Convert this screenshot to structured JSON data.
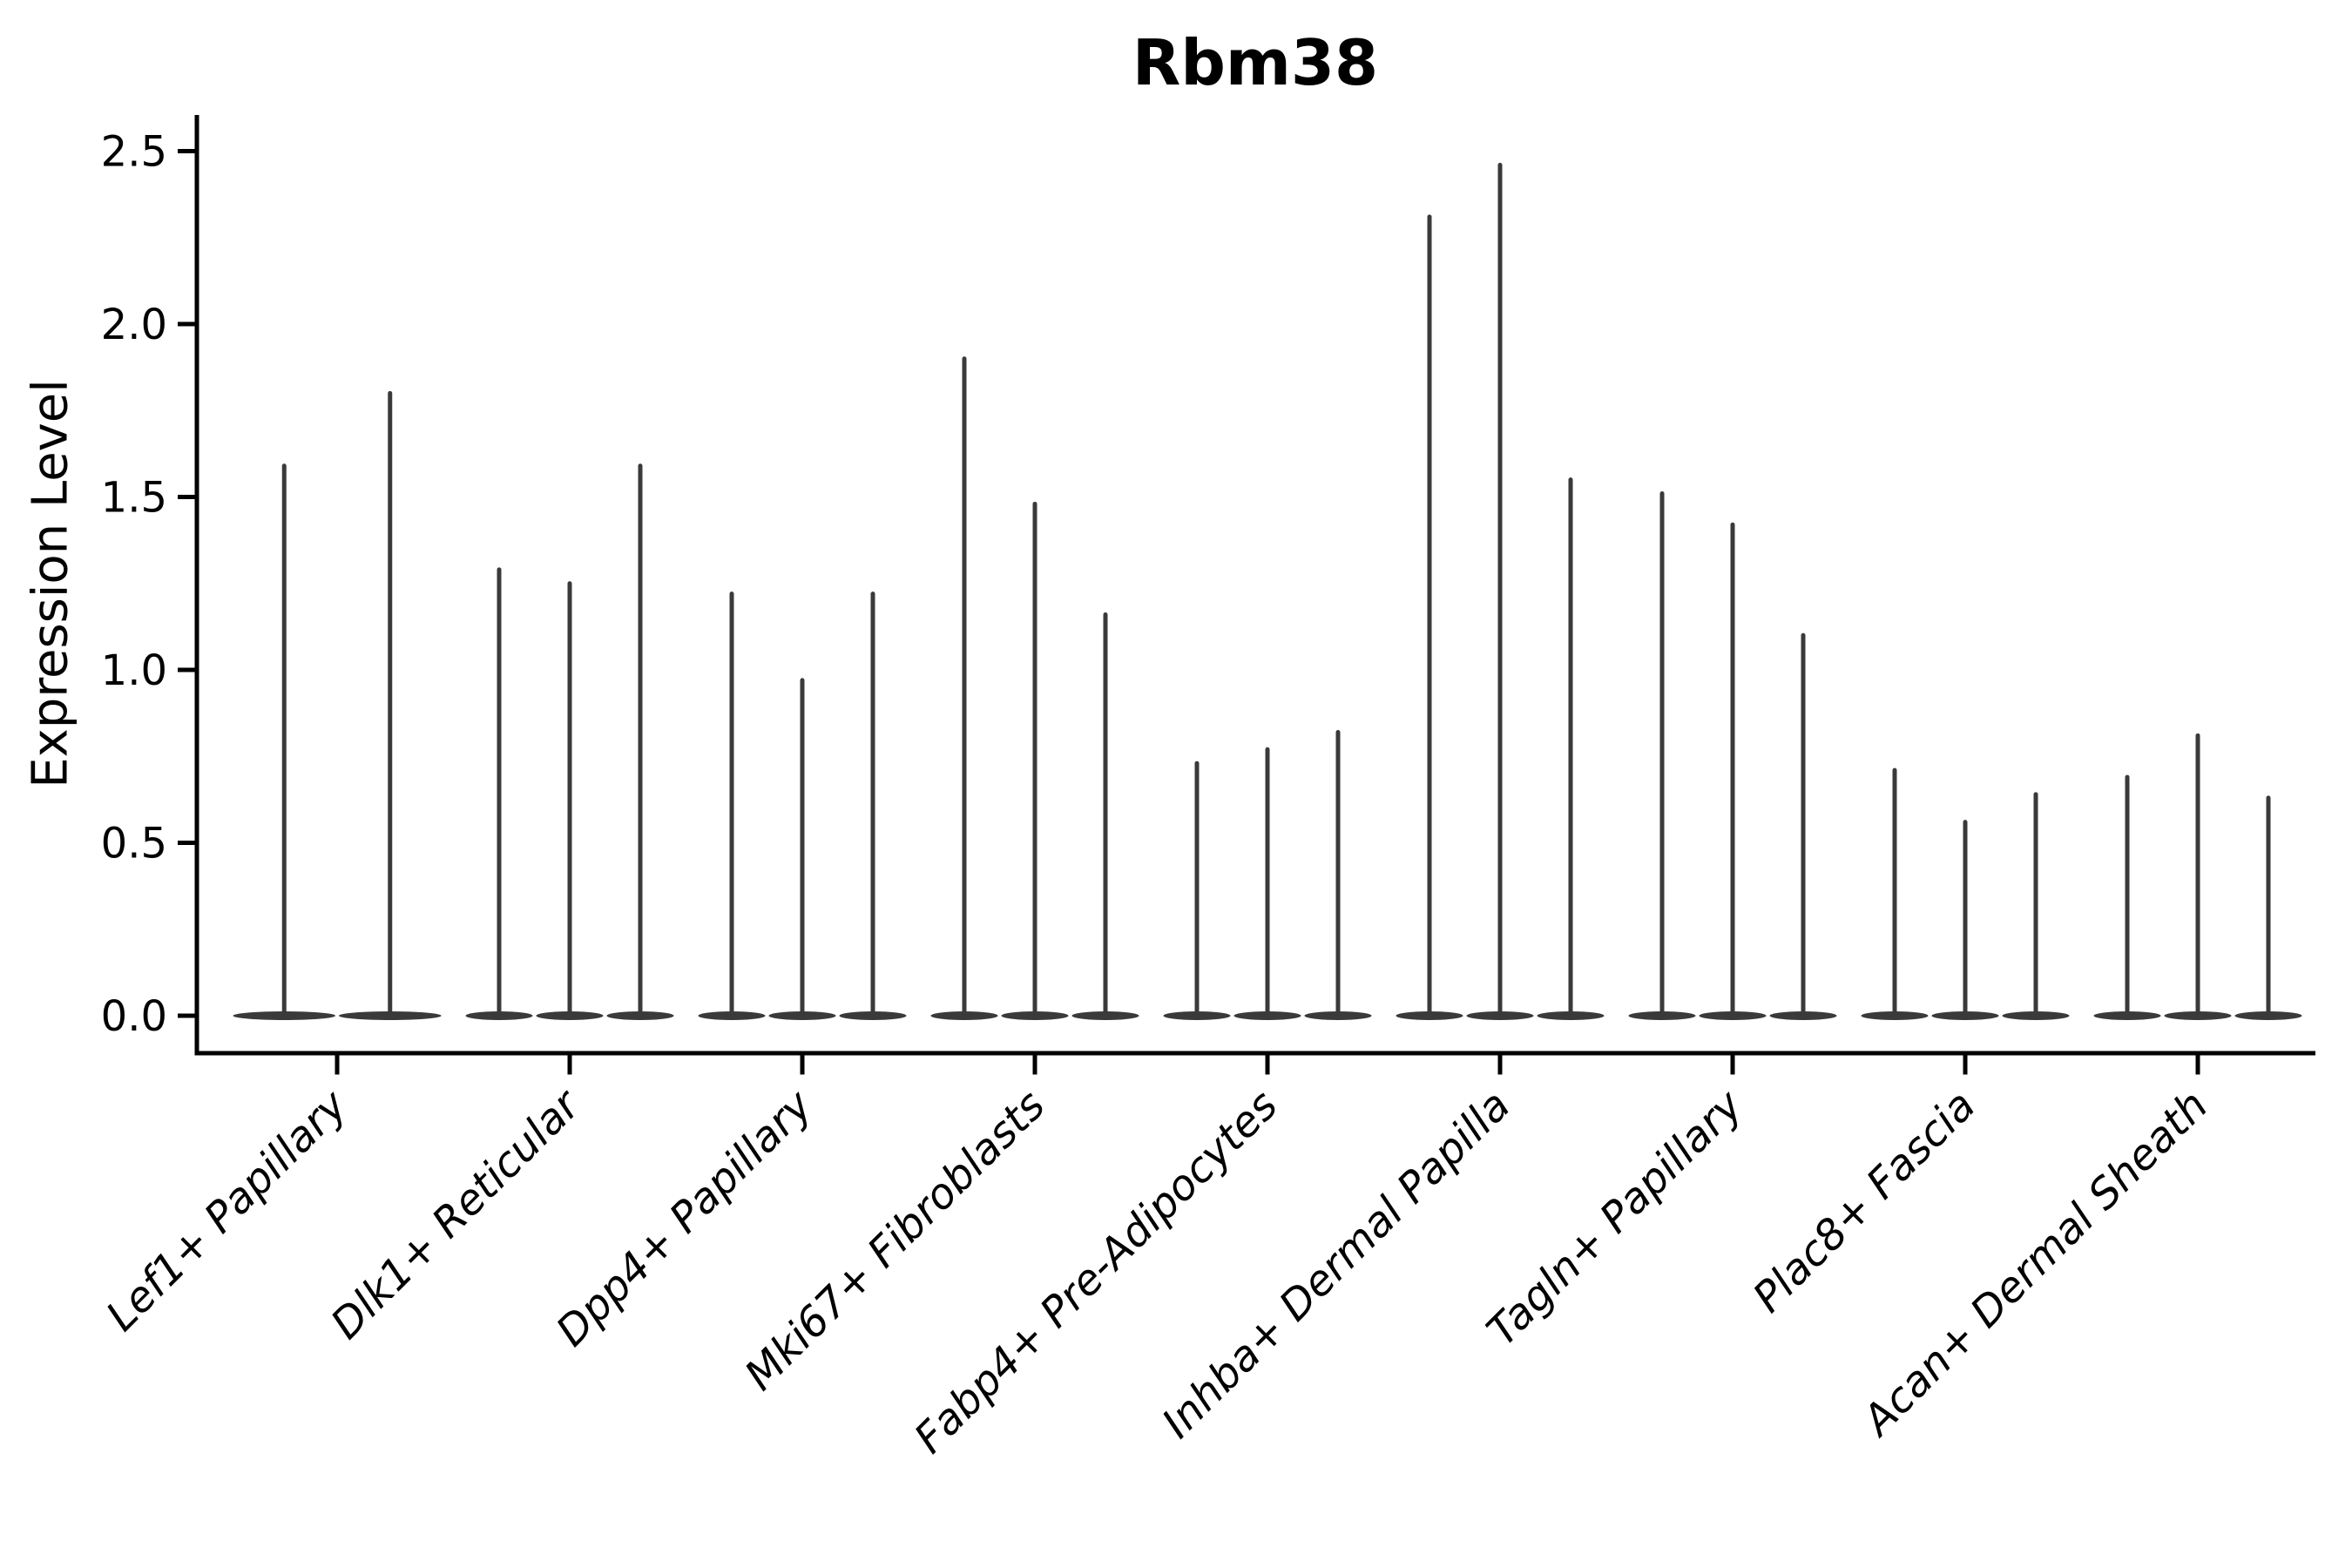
{
  "figure": {
    "title": "Rbm38",
    "ylabel": "Expression Level"
  },
  "chart_data": {
    "type": "violin",
    "title": "Rbm38",
    "xlabel": "",
    "ylabel": "Expression Level",
    "categories": [
      "Lef1+ Papillary",
      "Dlk1+ Reticular",
      "Dpp4+ Papillary",
      "Mki67+ Fibroblasts",
      "Fabp4+ Pre-Adipocytes",
      "Inhba+ Dermal Papilla",
      "Tagln+ Papillary",
      "Plac8+ Fascia",
      "Acan+ Dermal Sheath"
    ],
    "series": [
      {
        "category": "Lef1+ Papillary",
        "violin_max_values": [
          1.59,
          1.8
        ],
        "violin_min_values": [
          0.0,
          0.0
        ]
      },
      {
        "category": "Dlk1+ Reticular",
        "violin_max_values": [
          1.29,
          1.25,
          1.59
        ],
        "violin_min_values": [
          0.0,
          0.0,
          0.0
        ]
      },
      {
        "category": "Dpp4+ Papillary",
        "violin_max_values": [
          1.22,
          0.97,
          1.22
        ],
        "violin_min_values": [
          0.0,
          0.0,
          0.0
        ]
      },
      {
        "category": "Mki67+ Fibroblasts",
        "violin_max_values": [
          1.9,
          1.48,
          1.16
        ],
        "violin_min_values": [
          0.0,
          0.0,
          0.0
        ]
      },
      {
        "category": "Fabp4+ Pre-Adipocytes",
        "violin_max_values": [
          0.73,
          0.77,
          0.82
        ],
        "violin_min_values": [
          0.0,
          0.0,
          0.0
        ]
      },
      {
        "category": "Inhba+ Dermal Papilla",
        "violin_max_values": [
          2.31,
          2.46,
          1.55
        ],
        "violin_min_values": [
          0.0,
          0.0,
          0.0
        ]
      },
      {
        "category": "Tagln+ Papillary",
        "violin_max_values": [
          1.51,
          1.42,
          1.1
        ],
        "violin_min_values": [
          0.0,
          0.0,
          0.0
        ]
      },
      {
        "category": "Plac8+ Fascia",
        "violin_max_values": [
          0.71,
          0.56,
          0.64
        ],
        "violin_min_values": [
          0.0,
          0.0,
          0.0
        ]
      },
      {
        "category": "Acan+ Dermal Sheath",
        "violin_max_values": [
          0.69,
          0.81,
          0.63
        ],
        "violin_min_values": [
          0.0,
          0.0,
          0.0
        ]
      }
    ],
    "yticks": [
      "0.0",
      "0.5",
      "1.0",
      "1.5",
      "2.0",
      "2.5"
    ],
    "ylim": [
      -0.11,
      2.61
    ],
    "grid": false,
    "legend_position": "none",
    "violin_color": "#3a3a3a",
    "axis_color": "#000000",
    "background_color": "#ffffff",
    "bulk_of_distribution_at": 0.0
  }
}
